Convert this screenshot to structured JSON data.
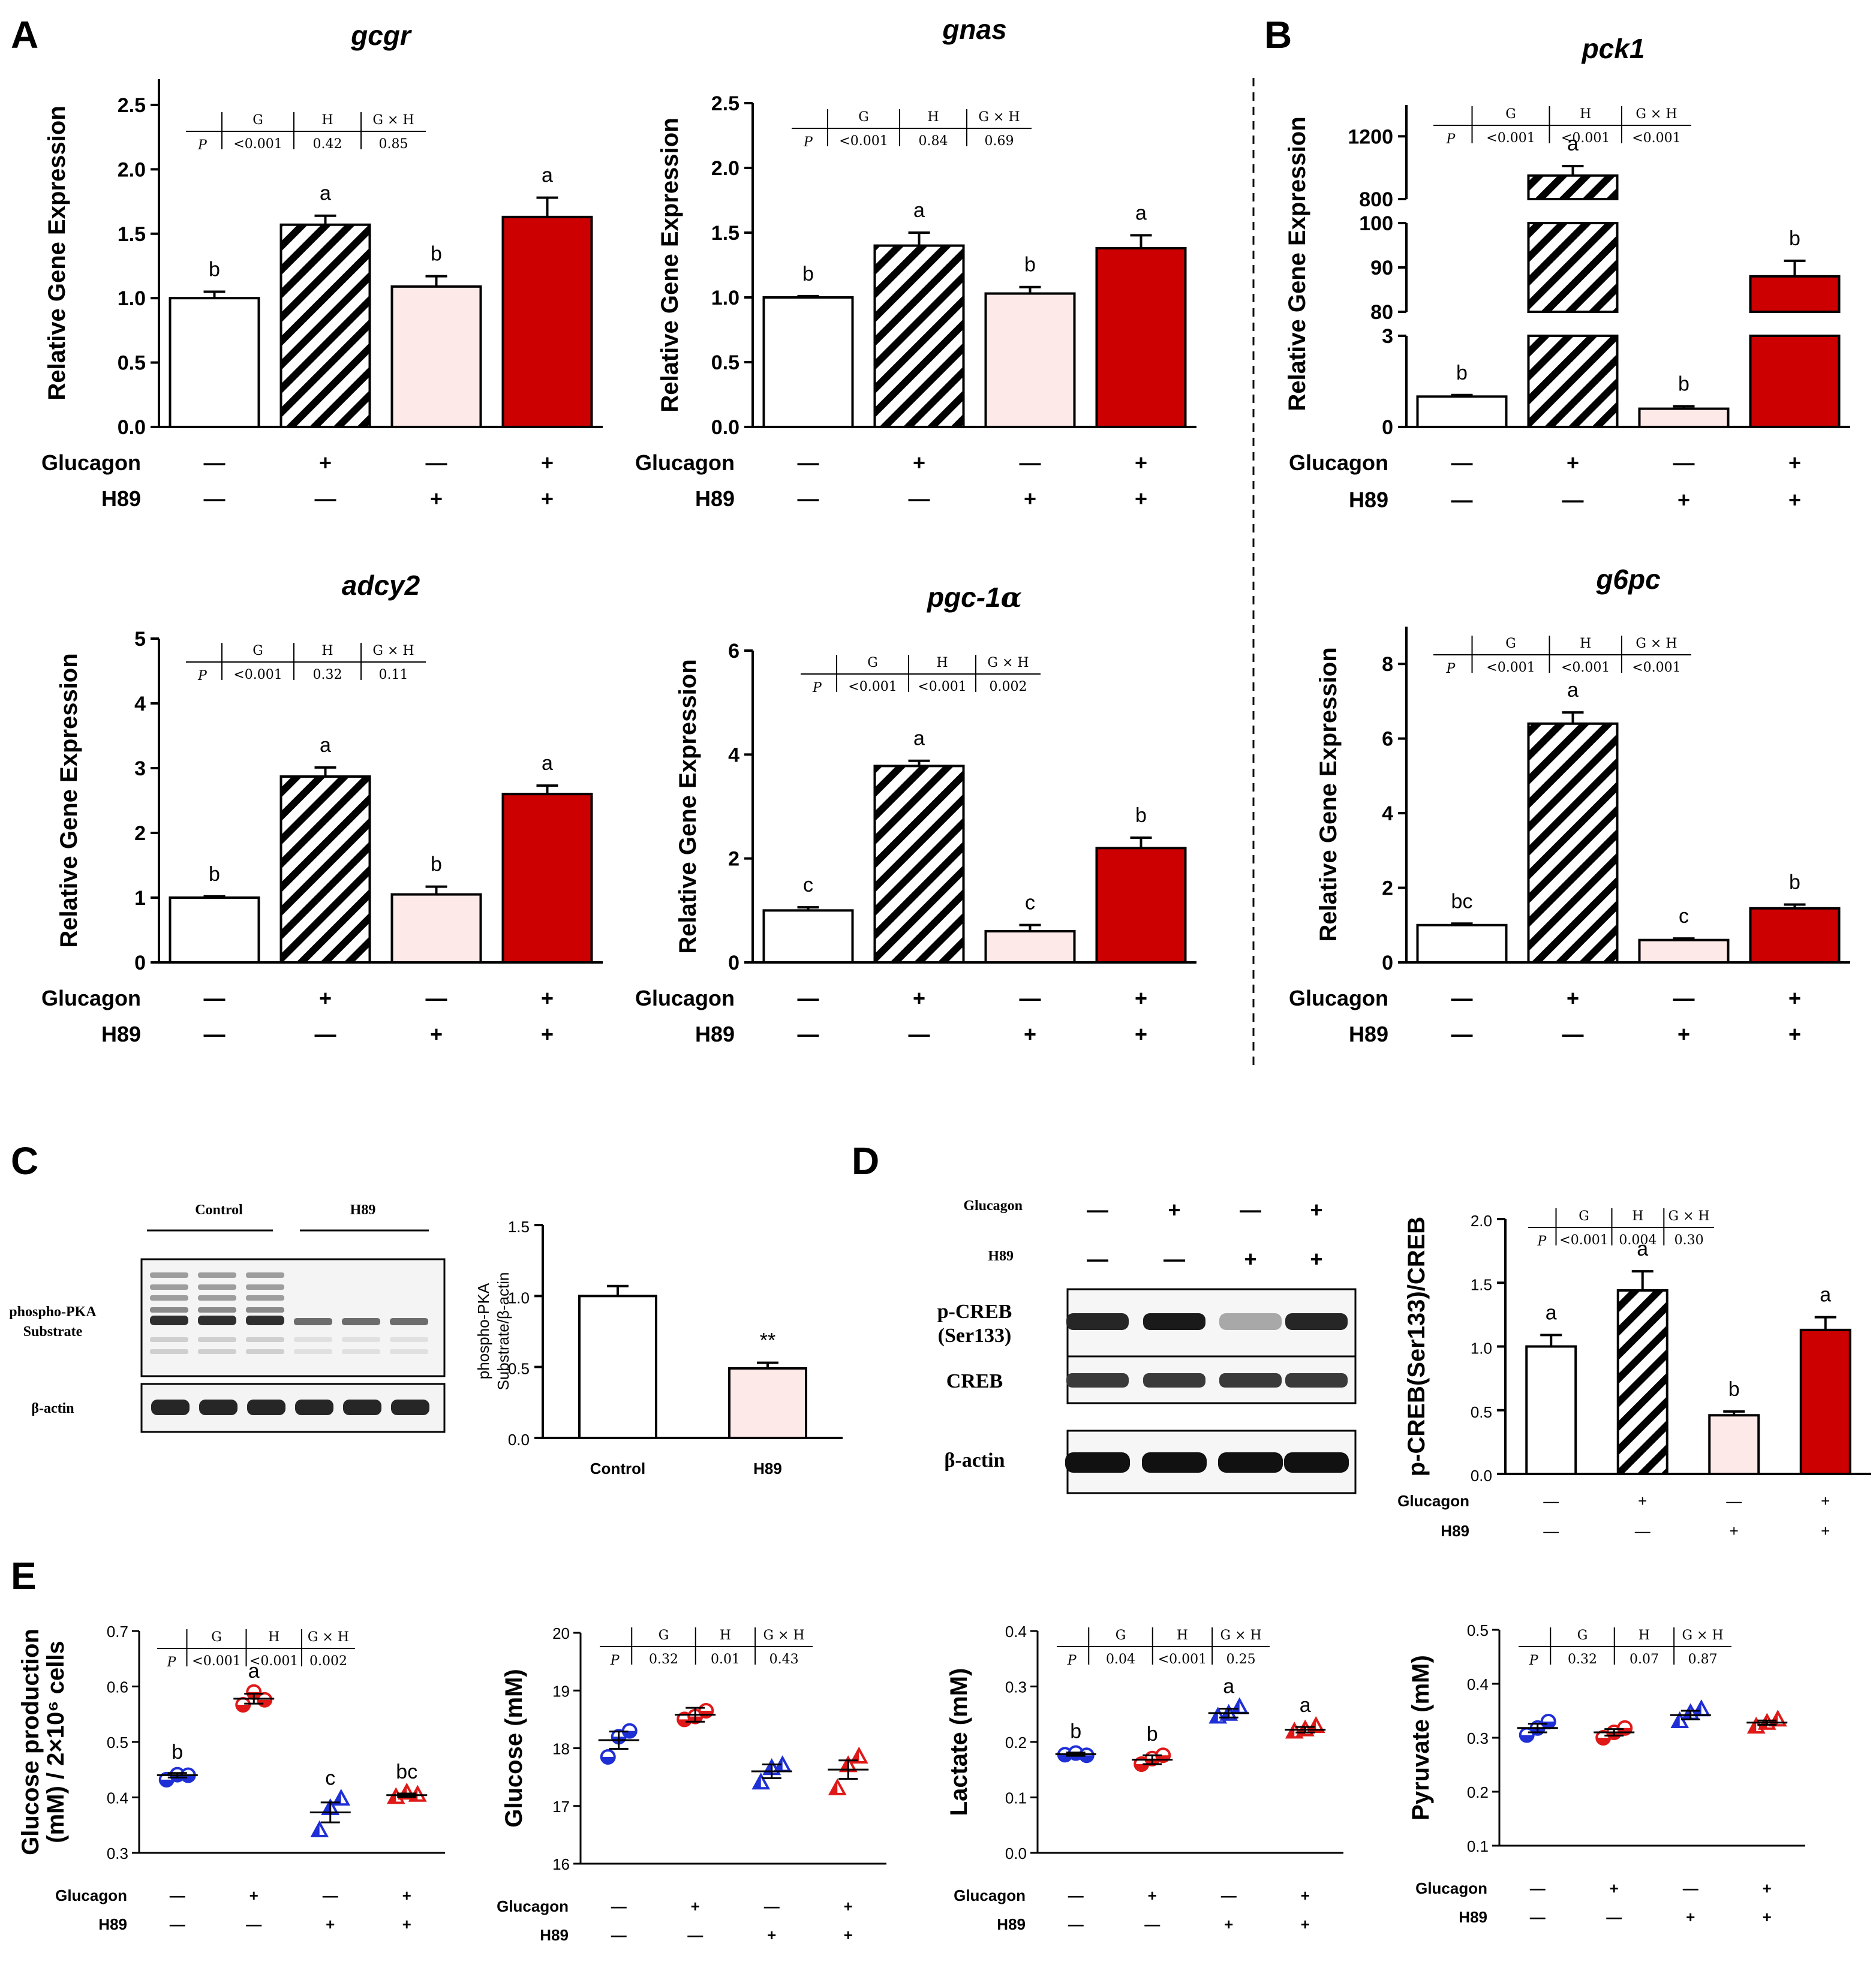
{
  "figure_labels": {
    "A": "A",
    "B": "B",
    "C": "C",
    "D": "D",
    "E": "E"
  },
  "colors": {
    "ctrl": "#ffffff",
    "h89": "#fde9e7",
    "glu_h89": "#cc0000",
    "stroke": "#000000",
    "blue": "#1f2fd6",
    "red": "#e01818"
  },
  "conditions": {
    "glucagon_label": "Glucagon",
    "h89_label": "H89",
    "glucagon": [
      "—",
      "+",
      "—",
      "+"
    ],
    "h89": [
      "—",
      "—",
      "+",
      "+"
    ]
  },
  "ptable_labels": {
    "p": "P",
    "g": "G",
    "h": "H",
    "gh": "G × H"
  },
  "chart_data": [
    {
      "id": "gcgr",
      "type": "bar",
      "title": "gcgr",
      "ylabel": "Relative Gene Expression",
      "ylim": [
        0,
        2.7
      ],
      "yticks": [
        "0.0",
        "0.5",
        "1.0",
        "1.5",
        "2.0",
        "2.5"
      ],
      "values": [
        1.0,
        1.57,
        1.09,
        1.63
      ],
      "errors": [
        0.05,
        0.07,
        0.08,
        0.15
      ],
      "letters": [
        "b",
        "a",
        "b",
        "a"
      ],
      "pvalues": {
        "g": "<0.001",
        "h": "0.42",
        "gh": "0.85"
      }
    },
    {
      "id": "gnas",
      "type": "bar",
      "title": "gnas",
      "ylabel": "Relative Gene Expression",
      "ylim": [
        0,
        2.5
      ],
      "yticks": [
        "0.0",
        "0.5",
        "1.0",
        "1.5",
        "2.0",
        "2.5"
      ],
      "values": [
        1.0,
        1.4,
        1.03,
        1.38
      ],
      "errors": [
        0.01,
        0.1,
        0.05,
        0.1
      ],
      "letters": [
        "b",
        "a",
        "b",
        "a"
      ],
      "pvalues": {
        "g": "<0.001",
        "h": "0.84",
        "gh": "0.69"
      }
    },
    {
      "id": "pck1",
      "type": "bar",
      "title": "pck1",
      "ylabel": "Relative Gene Expression",
      "yticks": [
        "0",
        "3",
        "80",
        "90",
        "100",
        "800",
        "1200"
      ],
      "values": [
        1.0,
        950,
        0.6,
        88
      ],
      "errors": [
        0.05,
        60,
        0.08,
        3.5
      ],
      "letters": [
        "b",
        "a",
        "b",
        "b"
      ],
      "pvalues": {
        "g": "<0.001",
        "h": "<0.001",
        "gh": "<0.001"
      }
    },
    {
      "id": "adcy2",
      "type": "bar",
      "title": "adcy2",
      "ylabel": "Relative Gene Expression",
      "ylim": [
        0,
        5
      ],
      "yticks": [
        "0",
        "1",
        "2",
        "3",
        "4",
        "5"
      ],
      "values": [
        1.0,
        2.87,
        1.05,
        2.6
      ],
      "errors": [
        0.02,
        0.14,
        0.12,
        0.13
      ],
      "letters": [
        "b",
        "a",
        "b",
        "a"
      ],
      "pvalues": {
        "g": "<0.001",
        "h": "0.32",
        "gh": "0.11"
      }
    },
    {
      "id": "pgc1a",
      "type": "bar",
      "title_main": "pgc-1",
      "title_greek": "α",
      "ylabel": "Relative Gene Expression",
      "ylim": [
        0,
        6
      ],
      "yticks": [
        "0",
        "2",
        "4",
        "6"
      ],
      "values": [
        1.0,
        3.78,
        0.6,
        2.2
      ],
      "errors": [
        0.06,
        0.1,
        0.12,
        0.2
      ],
      "letters": [
        "c",
        "a",
        "c",
        "b"
      ],
      "pvalues": {
        "g": "<0.001",
        "h": "<0.001",
        "gh": "0.002"
      }
    },
    {
      "id": "g6pc",
      "type": "bar",
      "title": "g6pc",
      "ylabel": "Relative Gene Expression",
      "ylim": [
        0,
        9
      ],
      "yticks": [
        "0",
        "2",
        "4",
        "6",
        "8"
      ],
      "values": [
        1.0,
        6.4,
        0.6,
        1.45
      ],
      "errors": [
        0.04,
        0.3,
        0.04,
        0.1
      ],
      "letters": [
        "bc",
        "a",
        "c",
        "b"
      ],
      "pvalues": {
        "g": "<0.001",
        "h": "<0.001",
        "gh": "<0.001"
      }
    },
    {
      "id": "pka",
      "type": "bar",
      "ylabel_line1": "phospho-PKA",
      "ylabel_line2": "Substrate/β-actin",
      "ylim": [
        0,
        1.5
      ],
      "yticks": [
        "0.0",
        "0.5",
        "1.0",
        "1.5"
      ],
      "categories": [
        "Control",
        "H89"
      ],
      "values": [
        1.0,
        0.49
      ],
      "errors": [
        0.07,
        0.04
      ],
      "letters": [
        "",
        "**"
      ]
    },
    {
      "id": "pcreb",
      "type": "bar",
      "ylabel": "p-CREB(Ser133)/CREB",
      "ylim": [
        0,
        2
      ],
      "yticks": [
        "0.0",
        "0.5",
        "1.0",
        "1.5",
        "2.0"
      ],
      "values": [
        1.0,
        1.44,
        0.46,
        1.13
      ],
      "errors": [
        0.09,
        0.15,
        0.03,
        0.1
      ],
      "letters": [
        "a",
        "a",
        "b",
        "a"
      ],
      "pvalues": {
        "g": "<0.001",
        "h": "0.004",
        "gh": "0.30"
      }
    },
    {
      "id": "glucprod",
      "type": "scatter",
      "ylabel_line1": "Glucose production",
      "ylabel_line2": "(mM) / 2×10⁶ cells",
      "ylim": [
        0.3,
        0.7
      ],
      "yticks": [
        "0.3",
        "0.4",
        "0.5",
        "0.6",
        "0.7"
      ],
      "points": [
        [
          0.432,
          0.441,
          0.44
        ],
        [
          0.567,
          0.59,
          0.576
        ],
        [
          0.34,
          0.38,
          0.397
        ],
        [
          0.4,
          0.408,
          0.404
        ]
      ],
      "means": [
        0.44,
        0.578,
        0.373,
        0.404
      ],
      "sems": [
        0.004,
        0.009,
        0.018,
        0.003
      ],
      "letters": [
        "b",
        "a",
        "c",
        "bc"
      ],
      "pvalues": {
        "g": "<0.001",
        "h": "<0.001",
        "gh": "0.002"
      }
    },
    {
      "id": "glucose",
      "type": "scatter",
      "ylabel": "Glucose (mM)",
      "ylim": [
        16,
        20
      ],
      "yticks": [
        "16",
        "17",
        "18",
        "19",
        "20"
      ],
      "points": [
        [
          17.85,
          18.2,
          18.3
        ],
        [
          18.5,
          18.55,
          18.65
        ],
        [
          17.4,
          17.65,
          17.7
        ],
        [
          17.3,
          17.7,
          17.85
        ]
      ],
      "means": [
        18.14,
        18.58,
        17.6,
        17.63
      ],
      "sems": [
        0.15,
        0.12,
        0.12,
        0.16
      ],
      "letters": [
        "",
        "",
        "",
        ""
      ],
      "pvalues": {
        "g": "0.32",
        "h": "0.01",
        "gh": "0.43"
      }
    },
    {
      "id": "lactate",
      "type": "scatter",
      "ylabel": "Lactate (mM)",
      "ylim": [
        0,
        0.4
      ],
      "yticks": [
        "0.0",
        "0.1",
        "0.2",
        "0.3",
        "0.4"
      ],
      "points": [
        [
          0.177,
          0.18,
          0.176
        ],
        [
          0.16,
          0.17,
          0.176
        ],
        [
          0.245,
          0.25,
          0.262
        ],
        [
          0.218,
          0.222,
          0.228
        ]
      ],
      "means": [
        0.178,
        0.168,
        0.252,
        0.222
      ],
      "sems": [
        0.003,
        0.008,
        0.008,
        0.005
      ],
      "letters": [
        "b",
        "b",
        "a",
        "a"
      ],
      "pvalues": {
        "g": "0.04",
        "h": "<0.001",
        "gh": "0.25"
      }
    },
    {
      "id": "pyruvate",
      "type": "scatter",
      "ylabel": "Pyruvate (mM)",
      "ylim": [
        0.1,
        0.5
      ],
      "yticks": [
        "0.1",
        "0.2",
        "0.3",
        "0.4",
        "0.5"
      ],
      "points": [
        [
          0.305,
          0.318,
          0.33
        ],
        [
          0.3,
          0.31,
          0.318
        ],
        [
          0.33,
          0.345,
          0.352
        ],
        [
          0.32,
          0.327,
          0.333
        ]
      ],
      "means": [
        0.318,
        0.31,
        0.342,
        0.328
      ],
      "sems": [
        0.008,
        0.006,
        0.008,
        0.004
      ],
      "letters": [
        "",
        "",
        "",
        ""
      ],
      "pvalues": {
        "g": "0.32",
        "h": "0.07",
        "gh": "0.87"
      }
    }
  ],
  "blots": {
    "c_groups": [
      "Control",
      "H89"
    ],
    "c_rows": [
      "phospho-PKA\nSubstrate",
      "β-actin"
    ],
    "d_rows": [
      "p-CREB\n(Ser133)",
      "CREB",
      "β-actin"
    ],
    "c_lanes": 6,
    "d_lanes": 4
  }
}
